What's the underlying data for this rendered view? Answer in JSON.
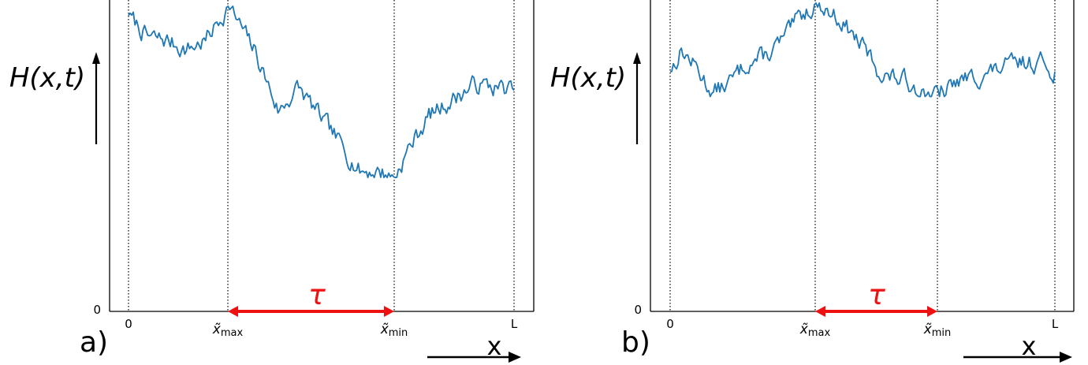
{
  "panels": [
    {
      "id": "a",
      "panel_label": "a)",
      "ylabel": "H(x,t)",
      "xlabel": "x",
      "ytick_zero": "0",
      "xtick_start": "0",
      "xtick_end": "L",
      "xtick_max": "x̃",
      "xtick_max_sub": "max",
      "xtick_min": "x̃",
      "xtick_min_sub": "min",
      "tau_label": "τ",
      "line_color": "#1f77b4",
      "arrow_color": "#ee1111",
      "profile": {
        "x_max": 0.26,
        "x_min": 0.69,
        "start": 0.95,
        "max": 0.98,
        "min": 0.43,
        "end": 0.71,
        "noise_seed": 7,
        "anchors": [
          [
            0,
            0.95
          ],
          [
            0.05,
            0.88
          ],
          [
            0.1,
            0.87
          ],
          [
            0.15,
            0.84
          ],
          [
            0.2,
            0.87
          ],
          [
            0.26,
            0.98
          ],
          [
            0.33,
            0.83
          ],
          [
            0.39,
            0.64
          ],
          [
            0.44,
            0.72
          ],
          [
            0.5,
            0.62
          ],
          [
            0.56,
            0.52
          ],
          [
            0.6,
            0.45
          ],
          [
            0.65,
            0.45
          ],
          [
            0.69,
            0.43
          ],
          [
            0.73,
            0.53
          ],
          [
            0.78,
            0.63
          ],
          [
            0.84,
            0.68
          ],
          [
            0.9,
            0.73
          ],
          [
            0.95,
            0.72
          ],
          [
            1.0,
            0.71
          ]
        ]
      }
    },
    {
      "id": "b",
      "panel_label": "b)",
      "ylabel": "H(x,t)",
      "xlabel": "x",
      "ytick_zero": "0",
      "xtick_start": "0",
      "xtick_end": "L",
      "xtick_max": "x̃",
      "xtick_max_sub": "max",
      "xtick_min": "x̃",
      "xtick_min_sub": "min",
      "tau_label": "τ",
      "line_color": "#1f77b4",
      "arrow_color": "#ee1111",
      "profile": {
        "x_max": 0.38,
        "x_min": 0.7,
        "start": 0.77,
        "max": 0.99,
        "min": 0.69,
        "end": 0.77,
        "noise_seed": 13,
        "anchors": [
          [
            0,
            0.77
          ],
          [
            0.03,
            0.84
          ],
          [
            0.07,
            0.78
          ],
          [
            0.11,
            0.7
          ],
          [
            0.16,
            0.74
          ],
          [
            0.2,
            0.8
          ],
          [
            0.25,
            0.82
          ],
          [
            0.3,
            0.88
          ],
          [
            0.34,
            0.95
          ],
          [
            0.38,
            0.99
          ],
          [
            0.44,
            0.94
          ],
          [
            0.5,
            0.85
          ],
          [
            0.55,
            0.76
          ],
          [
            0.61,
            0.74
          ],
          [
            0.66,
            0.71
          ],
          [
            0.7,
            0.69
          ],
          [
            0.75,
            0.74
          ],
          [
            0.82,
            0.76
          ],
          [
            0.88,
            0.79
          ],
          [
            0.93,
            0.8
          ],
          [
            0.97,
            0.8
          ],
          [
            1.0,
            0.77
          ]
        ]
      }
    }
  ]
}
